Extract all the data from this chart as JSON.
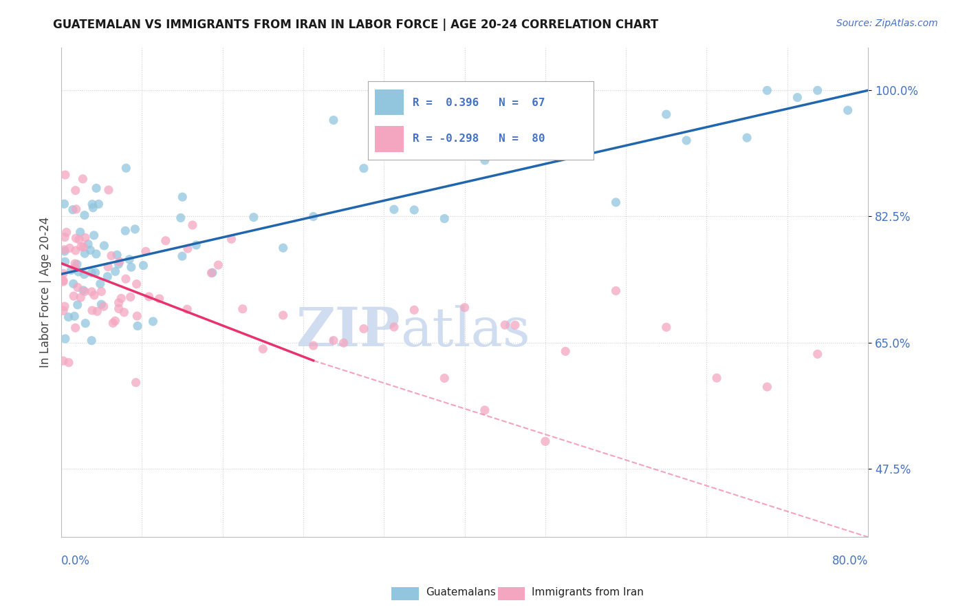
{
  "title": "GUATEMALAN VS IMMIGRANTS FROM IRAN IN LABOR FORCE | AGE 20-24 CORRELATION CHART",
  "source": "Source: ZipAtlas.com",
  "ylabel": "In Labor Force | Age 20-24",
  "yticks": [
    47.5,
    65.0,
    82.5,
    100.0
  ],
  "ytick_labels": [
    "47.5%",
    "65.0%",
    "82.5%",
    "100.0%"
  ],
  "xmin": 0.0,
  "xmax": 80.0,
  "ymin": 38.0,
  "ymax": 106.0,
  "blue_color": "#92c5de",
  "pink_color": "#f4a6c0",
  "trendline_blue_color": "#2166ac",
  "trendline_pink_color": "#e8326e",
  "legend_label_blue": "Guatemalans",
  "legend_label_pink": "Immigrants from Iran",
  "watermark_zip": "ZIP",
  "watermark_atlas": "atlas",
  "blue_trendline_x0": 0,
  "blue_trendline_x1": 80,
  "blue_trendline_y0": 74.5,
  "blue_trendline_y1": 100.0,
  "pink_solid_x0": 0,
  "pink_solid_x1": 25,
  "pink_solid_y0": 76.0,
  "pink_solid_y1": 62.5,
  "pink_dash_x0": 25,
  "pink_dash_x1": 80,
  "pink_dash_y0": 62.5,
  "pink_dash_y1": 38.0,
  "grid_color": "#d0d0d0",
  "text_color_blue": "#4472C4",
  "title_fontsize": 12,
  "source_fontsize": 10,
  "ytick_fontsize": 12,
  "ylabel_fontsize": 12
}
